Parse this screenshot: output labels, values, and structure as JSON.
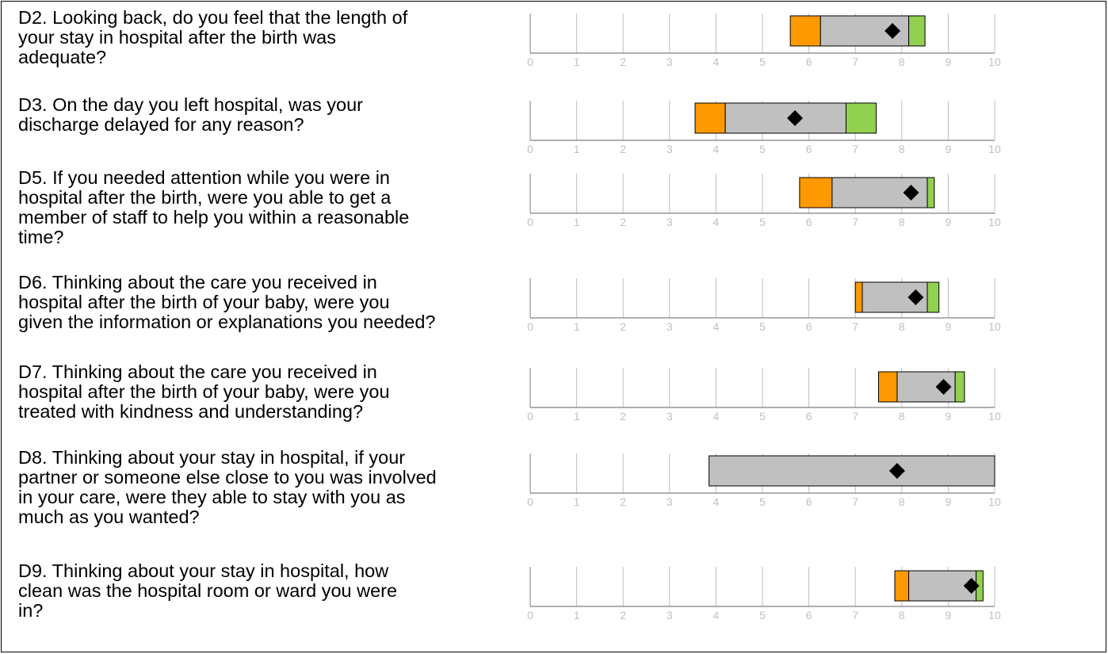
{
  "chart_data": [
    {
      "type": "bar",
      "question": "D2. Looking back, do you feel that the length of\nyour stay in hospital after the birth was\nadequate?",
      "xlim": [
        0,
        10
      ],
      "ticks": [
        "0",
        "1",
        "2",
        "3",
        "4",
        "5",
        "6",
        "7",
        "8",
        "9",
        "10"
      ],
      "range": [
        5.6,
        8.5
      ],
      "lower_band": [
        5.6,
        6.25
      ],
      "middle_band": [
        6.25,
        8.15
      ],
      "upper_band": [
        8.15,
        8.5
      ],
      "score": 7.8
    },
    {
      "type": "bar",
      "question": "D3. On the day you left hospital, was your\ndischarge delayed for any reason?",
      "xlim": [
        0,
        10
      ],
      "ticks": [
        "0",
        "1",
        "2",
        "3",
        "4",
        "5",
        "6",
        "7",
        "8",
        "9",
        "10"
      ],
      "range": [
        3.55,
        7.45
      ],
      "lower_band": [
        3.55,
        4.2
      ],
      "middle_band": [
        4.2,
        6.8
      ],
      "upper_band": [
        6.8,
        7.45
      ],
      "score": 5.7
    },
    {
      "type": "bar",
      "question": "D5. If you needed attention while you were in\nhospital after the birth, were you able to get a\nmember of staff to help you within a reasonable\ntime?",
      "xlim": [
        0,
        10
      ],
      "ticks": [
        "0",
        "1",
        "2",
        "3",
        "4",
        "5",
        "6",
        "7",
        "8",
        "9",
        "10"
      ],
      "range": [
        5.8,
        8.7
      ],
      "lower_band": [
        5.8,
        6.5
      ],
      "middle_band": [
        6.5,
        8.55
      ],
      "upper_band": [
        8.55,
        8.7
      ],
      "score": 8.2
    },
    {
      "type": "bar",
      "question": "D6. Thinking about the care you received in\nhospital after the birth of your baby, were you\ngiven the information or explanations you needed?",
      "xlim": [
        0,
        10
      ],
      "ticks": [
        "0",
        "1",
        "2",
        "3",
        "4",
        "5",
        "6",
        "7",
        "8",
        "9",
        "10"
      ],
      "range": [
        7.0,
        8.8
      ],
      "lower_band": [
        7.0,
        7.15
      ],
      "middle_band": [
        7.15,
        8.55
      ],
      "upper_band": [
        8.55,
        8.8
      ],
      "score": 8.3
    },
    {
      "type": "bar",
      "question": "D7. Thinking about the care you received in\nhospital after the birth of your baby, were you\ntreated with kindness and understanding?",
      "xlim": [
        0,
        10
      ],
      "ticks": [
        "0",
        "1",
        "2",
        "3",
        "4",
        "5",
        "6",
        "7",
        "8",
        "9",
        "10"
      ],
      "range": [
        7.5,
        9.35
      ],
      "lower_band": [
        7.5,
        7.9
      ],
      "middle_band": [
        7.9,
        9.15
      ],
      "upper_band": [
        9.15,
        9.35
      ],
      "score": 8.9
    },
    {
      "type": "bar",
      "question": "D8. Thinking about your stay in hospital, if your\npartner or someone else close to you was involved\nin your care, were they able to stay with you as\nmuch as you wanted?",
      "xlim": [
        0,
        10
      ],
      "ticks": [
        "0",
        "1",
        "2",
        "3",
        "4",
        "5",
        "6",
        "7",
        "8",
        "9",
        "10"
      ],
      "range": [
        3.85,
        10.0
      ],
      "lower_band": [
        3.85,
        3.85
      ],
      "middle_band": [
        3.85,
        10.0
      ],
      "upper_band": [
        10.0,
        10.0
      ],
      "score": 7.9
    },
    {
      "type": "bar",
      "question": "D9. Thinking about your stay in hospital, how\nclean was the hospital room or ward you were\nin?",
      "xlim": [
        0,
        10
      ],
      "ticks": [
        "0",
        "1",
        "2",
        "3",
        "4",
        "5",
        "6",
        "7",
        "8",
        "9",
        "10"
      ],
      "range": [
        7.85,
        9.75
      ],
      "lower_band": [
        7.85,
        8.15
      ],
      "middle_band": [
        8.15,
        9.6
      ],
      "upper_band": [
        9.6,
        9.75
      ],
      "score": 9.5
    }
  ],
  "colors": {
    "lower_band": "#ff9900",
    "middle_band": "#c0c0c0",
    "upper_band": "#92d050",
    "score_marker": "#000000",
    "gridline": "#bfbfbf",
    "axis": "#808080",
    "tick_label": "#c0c0c0"
  }
}
